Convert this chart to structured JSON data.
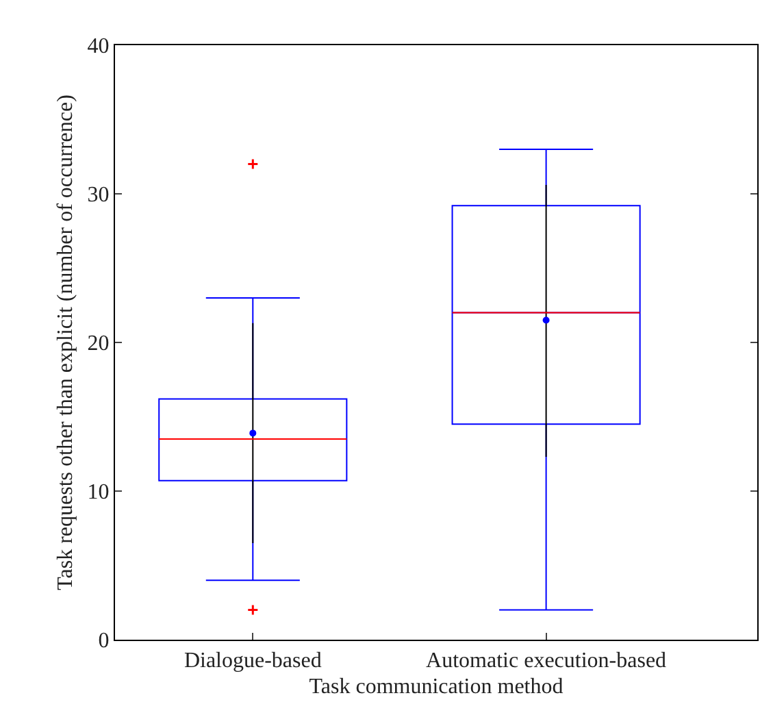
{
  "chart_data": {
    "type": "box",
    "xlabel": "Task communication method",
    "ylabel": "Task requests other than explicit (number of occurrence)",
    "categories": [
      "Dialogue-based",
      "Automatic execution-based"
    ],
    "ylim": [
      0,
      40
    ],
    "yticks": [
      0,
      10,
      20,
      30,
      40
    ],
    "grid": false,
    "series": [
      {
        "color": "#0000ff",
        "boxes": [
          {
            "low": 4.0,
            "q1": 10.7,
            "median": 13.5,
            "q3": 16.2,
            "high": 23.0,
            "outliers": [
              32.0,
              2.0
            ]
          },
          {
            "low": 2.0,
            "q1": 14.5,
            "median": 22.0,
            "q3": 29.2,
            "high": 33.0
          }
        ]
      },
      {
        "type": "scatter",
        "color": "#0000ff",
        "marker": "circle",
        "values": [
          13.9,
          21.5
        ],
        "errors": [
          [
            6.5,
            21.3
          ],
          [
            12.3,
            30.6
          ]
        ]
      }
    ]
  }
}
